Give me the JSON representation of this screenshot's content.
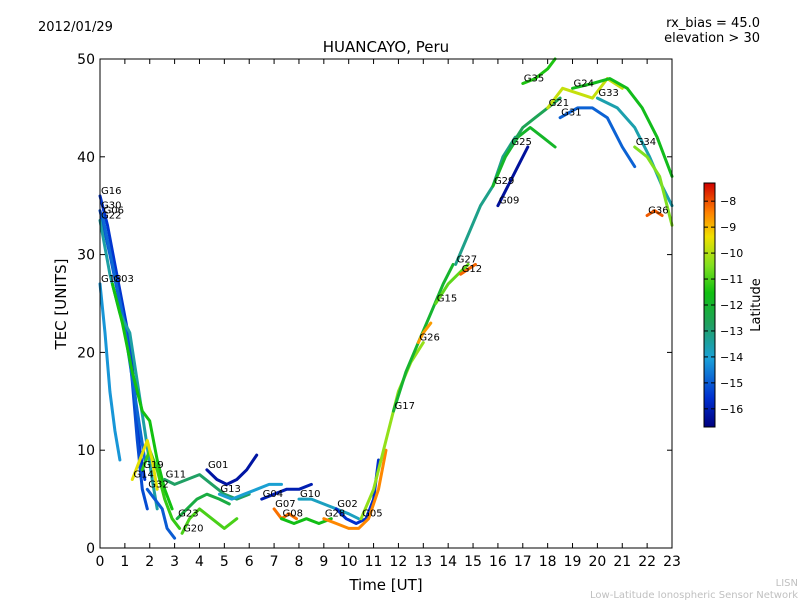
{
  "header": {
    "date": "2012/01/29",
    "rx_bias": "rx_bias = 45.0",
    "elevation": "elevation > 30"
  },
  "footer": {
    "line1": "LISN",
    "line2": "Low-Latitude Ionospheric Sensor Network"
  },
  "chart_data": {
    "type": "scatter",
    "title": "HUANCAYO, Peru",
    "xlabel": "Time [UT]",
    "ylabel": "TEC [UNITS]",
    "xlim": [
      0,
      23
    ],
    "ylim": [
      0,
      50
    ],
    "xticks": [
      0,
      1,
      2,
      3,
      4,
      5,
      6,
      7,
      8,
      9,
      10,
      11,
      12,
      13,
      14,
      15,
      16,
      17,
      18,
      19,
      20,
      21,
      22,
      23
    ],
    "yticks": [
      0,
      10,
      20,
      30,
      40,
      50
    ],
    "colorbar": {
      "label": "Latitude",
      "range": [
        -16.7,
        -7.3
      ],
      "ticks": [
        -8,
        -9,
        -10,
        -11,
        -12,
        -13,
        -14,
        -15,
        -16
      ]
    },
    "series": [
      {
        "name": "G16",
        "lat": -15.5,
        "points": [
          [
            0,
            36
          ],
          [
            0.3,
            33
          ],
          [
            0.6,
            29
          ],
          [
            0.9,
            25
          ],
          [
            1.2,
            21
          ],
          [
            1.4,
            16
          ],
          [
            1.6,
            10
          ],
          [
            1.8,
            7
          ]
        ]
      },
      {
        "name": "G30",
        "lat": -15.2,
        "points": [
          [
            0,
            34.5
          ],
          [
            0.4,
            30
          ],
          [
            0.8,
            25
          ],
          [
            1.1,
            22
          ],
          [
            1.3,
            17
          ],
          [
            1.5,
            11
          ],
          [
            1.7,
            6
          ],
          [
            1.9,
            4
          ]
        ]
      },
      {
        "name": "G06",
        "lat": -14.8,
        "points": [
          [
            0.1,
            34
          ],
          [
            0.5,
            29
          ],
          [
            0.9,
            24
          ],
          [
            1.2,
            19
          ],
          [
            1.5,
            14
          ],
          [
            1.8,
            9
          ]
        ]
      },
      {
        "name": "G22",
        "lat": -13.5,
        "points": [
          [
            0,
            33.5
          ],
          [
            0.4,
            28
          ],
          [
            0.8,
            24
          ],
          [
            1.2,
            22
          ],
          [
            1.5,
            17
          ],
          [
            1.8,
            12
          ],
          [
            2.1,
            7
          ],
          [
            2.3,
            4
          ]
        ]
      },
      {
        "name": "G18",
        "lat": -14.2,
        "points": [
          [
            0,
            27
          ],
          [
            0.2,
            22
          ],
          [
            0.4,
            16
          ],
          [
            0.6,
            12
          ],
          [
            0.8,
            9
          ]
        ]
      },
      {
        "name": "G03",
        "lat": -11.5,
        "points": [
          [
            0.5,
            27
          ],
          [
            0.9,
            23
          ],
          [
            1.3,
            18
          ],
          [
            1.7,
            14
          ],
          [
            2.0,
            13
          ],
          [
            2.3,
            9
          ],
          [
            2.6,
            6
          ],
          [
            2.9,
            4
          ]
        ]
      },
      {
        "name": "G19",
        "lat": -11.2,
        "points": [
          [
            1.7,
            8
          ],
          [
            2.0,
            10
          ],
          [
            2.3,
            8
          ],
          [
            2.6,
            5
          ],
          [
            2.9,
            3
          ],
          [
            3.2,
            2
          ]
        ]
      },
      {
        "name": "G14",
        "lat": -9.5,
        "points": [
          [
            1.3,
            7
          ],
          [
            1.6,
            9
          ],
          [
            1.9,
            11
          ],
          [
            2.1,
            9
          ],
          [
            2.3,
            6
          ]
        ]
      },
      {
        "name": "G32",
        "lat": -15.0,
        "points": [
          [
            1.9,
            6
          ],
          [
            2.2,
            5
          ],
          [
            2.5,
            4
          ],
          [
            2.7,
            2
          ],
          [
            3.0,
            1
          ]
        ]
      },
      {
        "name": "G11",
        "lat": -12.8,
        "points": [
          [
            2.6,
            7
          ],
          [
            3.0,
            6.5
          ],
          [
            3.5,
            7
          ],
          [
            4.0,
            7.5
          ],
          [
            4.5,
            6.5
          ],
          [
            5.0,
            5.5
          ],
          [
            5.5,
            5
          ],
          [
            6.0,
            5.5
          ]
        ]
      },
      {
        "name": "G01",
        "lat": -16.2,
        "points": [
          [
            4.3,
            8
          ],
          [
            4.7,
            7
          ],
          [
            5.1,
            6.5
          ],
          [
            5.5,
            7
          ],
          [
            5.9,
            8
          ],
          [
            6.3,
            9.5
          ]
        ]
      },
      {
        "name": "G23",
        "lat": -12.3,
        "points": [
          [
            3.1,
            3
          ],
          [
            3.5,
            4
          ],
          [
            3.9,
            5
          ],
          [
            4.3,
            5.5
          ],
          [
            4.8,
            5
          ],
          [
            5.2,
            4.5
          ]
        ]
      },
      {
        "name": "G20",
        "lat": -11.0,
        "points": [
          [
            3.3,
            1.5
          ],
          [
            3.6,
            3
          ],
          [
            4.0,
            4
          ],
          [
            4.5,
            3
          ],
          [
            5.0,
            2
          ],
          [
            5.5,
            3
          ]
        ]
      },
      {
        "name": "G13",
        "lat": -14.0,
        "points": [
          [
            4.8,
            5.5
          ],
          [
            5.3,
            5
          ],
          [
            5.8,
            5.5
          ],
          [
            6.3,
            6
          ],
          [
            6.8,
            6.5
          ],
          [
            7.3,
            6.5
          ]
        ]
      },
      {
        "name": "G07",
        "lat": -8.3,
        "points": [
          [
            7.0,
            4
          ],
          [
            7.3,
            3
          ],
          [
            7.6,
            3.5
          ],
          [
            7.9,
            3
          ]
        ]
      },
      {
        "name": "G08",
        "lat": -11.6,
        "points": [
          [
            7.3,
            3
          ],
          [
            7.8,
            2.5
          ],
          [
            8.3,
            3
          ],
          [
            8.8,
            2.5
          ],
          [
            9.3,
            3
          ]
        ]
      },
      {
        "name": "G04",
        "lat": -16.0,
        "points": [
          [
            6.5,
            5
          ],
          [
            7.0,
            5.5
          ],
          [
            7.5,
            6
          ],
          [
            8.0,
            6
          ],
          [
            8.5,
            6.5
          ]
        ]
      },
      {
        "name": "G10",
        "lat": -13.8,
        "points": [
          [
            8.0,
            5
          ],
          [
            8.5,
            5
          ],
          [
            9.0,
            4.5
          ],
          [
            9.5,
            4
          ],
          [
            10.0,
            3.5
          ],
          [
            10.4,
            3
          ]
        ]
      },
      {
        "name": "G02",
        "lat": -15.6,
        "points": [
          [
            9.5,
            4
          ],
          [
            9.9,
            3
          ],
          [
            10.3,
            2.5
          ],
          [
            10.7,
            3
          ],
          [
            11.0,
            5
          ],
          [
            11.2,
            9
          ]
        ]
      },
      {
        "name": "G28",
        "lat": -8.5,
        "points": [
          [
            9.0,
            3
          ],
          [
            9.5,
            2.5
          ],
          [
            10.0,
            2
          ],
          [
            10.4,
            2
          ],
          [
            10.8,
            3
          ],
          [
            11.2,
            6
          ],
          [
            11.5,
            10
          ]
        ]
      },
      {
        "name": "G05",
        "lat": -10.3,
        "points": [
          [
            10.5,
            3
          ],
          [
            11.0,
            6
          ],
          [
            11.5,
            11
          ],
          [
            12.0,
            16
          ],
          [
            12.5,
            19
          ],
          [
            13.0,
            21
          ]
        ]
      },
      {
        "name": "G17",
        "lat": -12.0,
        "points": [
          [
            11.8,
            14
          ],
          [
            12.3,
            18
          ],
          [
            12.8,
            21
          ],
          [
            13.3,
            24
          ],
          [
            13.8,
            27
          ],
          [
            14.2,
            29
          ]
        ]
      },
      {
        "name": "G26",
        "lat": -8.7,
        "points": [
          [
            12.8,
            21
          ],
          [
            13.0,
            22
          ],
          [
            13.3,
            23
          ]
        ]
      },
      {
        "name": "G15",
        "lat": -10.8,
        "points": [
          [
            13.5,
            25
          ],
          [
            14.0,
            27
          ],
          [
            14.4,
            28
          ],
          [
            14.8,
            29
          ]
        ]
      },
      {
        "name": "G12",
        "lat": -8.2,
        "points": [
          [
            14.5,
            28
          ],
          [
            14.8,
            28.5
          ],
          [
            15.1,
            29
          ]
        ]
      },
      {
        "name": "G27",
        "lat": -13.2,
        "points": [
          [
            14.3,
            29
          ],
          [
            14.8,
            32
          ],
          [
            15.3,
            35
          ],
          [
            15.8,
            37
          ],
          [
            16.2,
            40
          ],
          [
            16.7,
            42
          ]
        ]
      },
      {
        "name": "G09",
        "lat": -16.3,
        "points": [
          [
            16.0,
            35
          ],
          [
            16.4,
            37
          ],
          [
            16.8,
            39
          ],
          [
            17.2,
            41
          ]
        ]
      },
      {
        "name": "G29",
        "lat": -11.9,
        "points": [
          [
            15.8,
            37
          ],
          [
            16.3,
            40
          ],
          [
            16.8,
            42
          ],
          [
            17.3,
            43
          ],
          [
            17.8,
            42
          ],
          [
            18.3,
            41
          ]
        ]
      },
      {
        "name": "G25",
        "lat": -12.6,
        "points": [
          [
            16.5,
            41
          ],
          [
            17.0,
            43
          ],
          [
            17.5,
            44
          ],
          [
            18.0,
            45
          ],
          [
            18.5,
            46
          ]
        ]
      },
      {
        "name": "G21",
        "lat": -9.8,
        "points": [
          [
            18.0,
            45
          ],
          [
            18.6,
            47
          ],
          [
            19.2,
            46.5
          ],
          [
            19.8,
            46
          ],
          [
            20.4,
            48
          ],
          [
            21.0,
            47
          ]
        ]
      },
      {
        "name": "G31",
        "lat": -14.9,
        "points": [
          [
            18.5,
            44
          ],
          [
            19.2,
            45
          ],
          [
            19.8,
            45
          ],
          [
            20.4,
            44
          ],
          [
            21.0,
            41
          ],
          [
            21.5,
            39
          ]
        ]
      },
      {
        "name": "G24",
        "lat": -11.7,
        "points": [
          [
            19.0,
            47
          ],
          [
            19.8,
            47.5
          ],
          [
            20.5,
            48
          ],
          [
            21.2,
            47
          ],
          [
            21.8,
            45
          ],
          [
            22.4,
            42
          ],
          [
            23,
            38
          ]
        ]
      },
      {
        "name": "G33",
        "lat": -13.6,
        "points": [
          [
            20.0,
            46
          ],
          [
            20.8,
            45
          ],
          [
            21.5,
            43
          ],
          [
            22.1,
            40
          ],
          [
            22.6,
            37
          ],
          [
            23,
            35
          ]
        ]
      },
      {
        "name": "G34",
        "lat": -10.5,
        "points": [
          [
            21.5,
            41
          ],
          [
            22.0,
            40
          ],
          [
            22.5,
            38
          ],
          [
            23,
            33
          ]
        ]
      },
      {
        "name": "G35",
        "lat": -11.4,
        "points": [
          [
            17.0,
            47.5
          ],
          [
            17.5,
            48
          ],
          [
            18.0,
            49
          ],
          [
            18.3,
            50
          ]
        ]
      },
      {
        "name": "G36",
        "lat": -8.1,
        "points": [
          [
            22.0,
            34
          ],
          [
            22.3,
            34.5
          ],
          [
            22.6,
            34
          ]
        ]
      }
    ]
  }
}
